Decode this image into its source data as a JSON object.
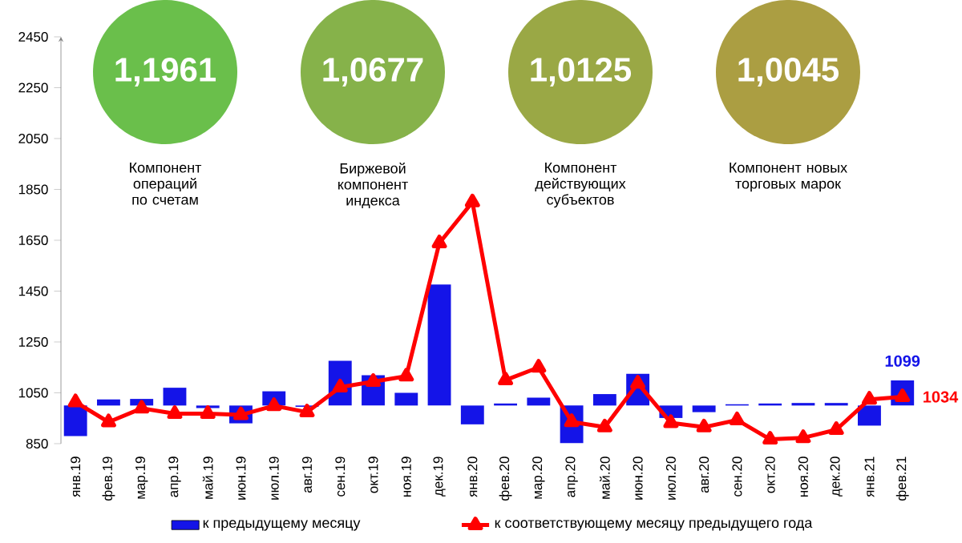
{
  "chart_data": {
    "type": "bar",
    "categories": [
      "янв.19",
      "фев.19",
      "мар.19",
      "апр.19",
      "май.19",
      "июн.19",
      "июл.19",
      "авг.19",
      "сен.19",
      "окт.19",
      "ноя.19",
      "дек.19",
      "янв.20",
      "фев.20",
      "мар.20",
      "апр.20",
      "май.20",
      "июн.20",
      "июл.20",
      "авг.20",
      "сен.20",
      "окт.20",
      "ноя.20",
      "дек.20",
      "янв.21",
      "фев.21"
    ],
    "series": [
      {
        "name": "к предыдущему месяцу",
        "color": "#1414e8",
        "base": [
          1000,
          1000,
          1000,
          1000,
          1000,
          1000,
          1000,
          1000,
          1000,
          1000,
          1000,
          1000,
          1000,
          1000,
          1000,
          1000,
          1000,
          1000,
          1000,
          1000,
          1000,
          1000,
          1000,
          1000,
          1000,
          1000
        ],
        "values": [
          -120,
          24,
          26,
          70,
          -10,
          -70,
          56,
          -5,
          176,
          119,
          50,
          476,
          -74,
          8,
          31,
          -148,
          45,
          125,
          -49,
          -26,
          5,
          8,
          10,
          10,
          -79,
          99
        ],
        "value_labels": [
          null,
          null,
          null,
          null,
          null,
          null,
          null,
          null,
          null,
          null,
          null,
          null,
          null,
          null,
          null,
          null,
          null,
          null,
          null,
          null,
          null,
          null,
          null,
          null,
          null,
          "1099"
        ]
      },
      {
        "name": "к соответствующему месяцу предыдущего года",
        "type": "line",
        "color": "#ff0000",
        "marker": "triangle",
        "values": [
          1014,
          935,
          989,
          968,
          968,
          963,
          999,
          974,
          1072,
          1094,
          1115,
          1639,
          1800,
          1100,
          1150,
          936,
          915,
          1087,
          932,
          915,
          943,
          867,
          873,
          905,
          1024,
          1034
        ],
        "value_labels": [
          null,
          null,
          null,
          null,
          null,
          null,
          null,
          null,
          null,
          null,
          null,
          null,
          null,
          null,
          null,
          null,
          null,
          null,
          null,
          null,
          null,
          null,
          null,
          null,
          null,
          "1034"
        ]
      }
    ],
    "ylim": [
      850,
      2450
    ],
    "yticks": [
      850,
      1050,
      1250,
      1450,
      1650,
      1850,
      2050,
      2250,
      2450
    ],
    "legend": "bottom",
    "annotations": [
      "1,1961",
      "Компонент операций по счетам",
      "1,0677",
      "Биржевой компонент индекса",
      "1,0125",
      "Компонент действующих субъектов",
      "1,0045",
      "Компонент новых торговых марок"
    ]
  }
}
